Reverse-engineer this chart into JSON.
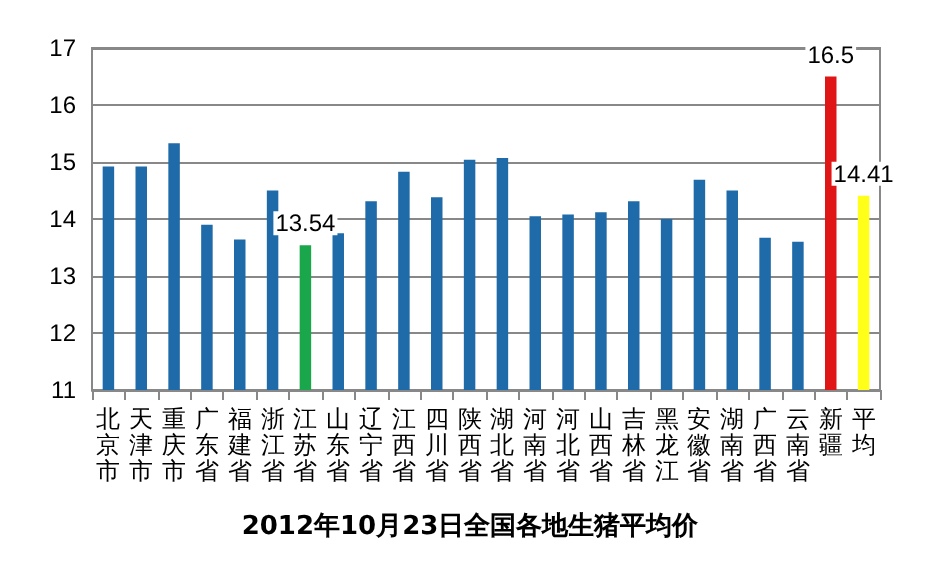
{
  "chart_data": {
    "type": "bar",
    "title": "2012年10月23日全国各地生猪平均价",
    "categories": [
      "北京市",
      "天津市",
      "重庆市",
      "广东省",
      "福建省",
      "浙江省",
      "江苏省",
      "山东省",
      "辽宁省",
      "江西省",
      "四川省",
      "陕西省",
      "湖北省",
      "河南省",
      "河北省",
      "山西省",
      "吉林省",
      "黑龙江",
      "安徽省",
      "湖南省",
      "广西省",
      "云南省",
      "新疆",
      "平均"
    ],
    "values": [
      14.92,
      14.92,
      15.33,
      13.9,
      13.64,
      14.5,
      13.54,
      13.75,
      14.31,
      14.83,
      14.38,
      15.04,
      15.07,
      14.05,
      14.08,
      14.12,
      14.31,
      14.0,
      14.69,
      14.5,
      13.67,
      13.6,
      16.5,
      14.41
    ],
    "colors": [
      "#1f6aa8",
      "#1f6aa8",
      "#1f6aa8",
      "#1f6aa8",
      "#1f6aa8",
      "#1f6aa8",
      "#1aa64a",
      "#1f6aa8",
      "#1f6aa8",
      "#1f6aa8",
      "#1f6aa8",
      "#1f6aa8",
      "#1f6aa8",
      "#1f6aa8",
      "#1f6aa8",
      "#1f6aa8",
      "#1f6aa8",
      "#1f6aa8",
      "#1f6aa8",
      "#1f6aa8",
      "#1f6aa8",
      "#1f6aa8",
      "#e01515",
      "#ffff1a"
    ],
    "value_labels": [
      null,
      null,
      null,
      null,
      null,
      null,
      "13.54",
      null,
      null,
      null,
      null,
      null,
      null,
      null,
      null,
      null,
      null,
      null,
      null,
      null,
      null,
      null,
      "16.5",
      "14.41"
    ],
    "ylim": [
      11,
      17
    ],
    "yticks": [
      11,
      12,
      13,
      14,
      15,
      16,
      17
    ],
    "grid": "y"
  }
}
